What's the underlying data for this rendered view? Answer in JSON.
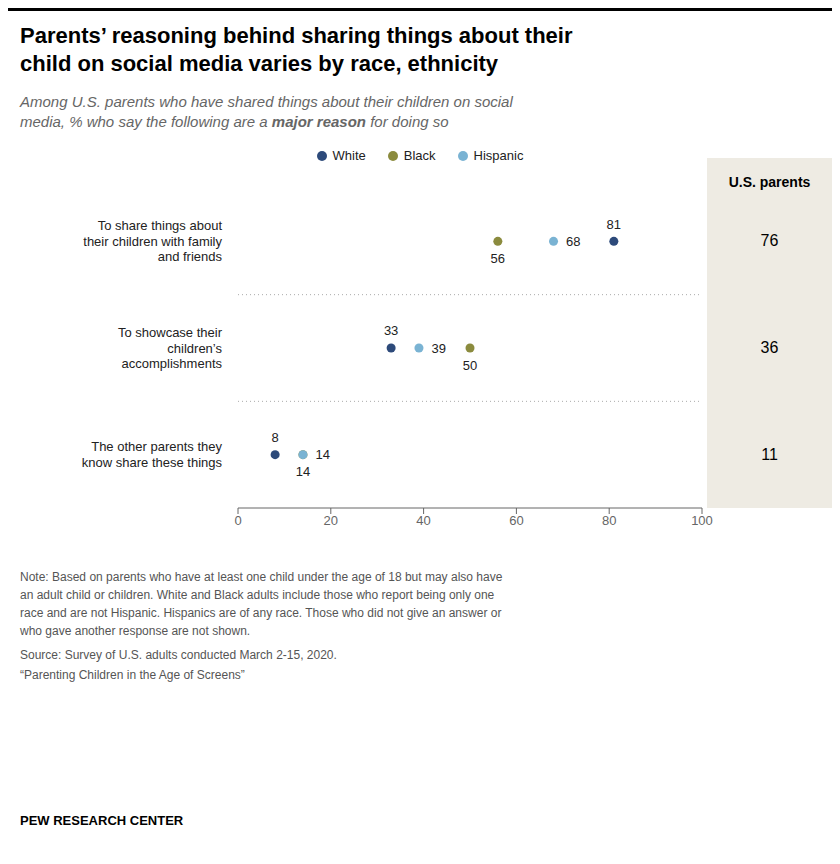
{
  "chart_data": {
    "type": "scatter",
    "title": "Parents’ reasoning behind sharing things about their\nchild on social media varies by race, ethnicity",
    "subtitle": "Among U.S. parents who have shared things about their children on social\nmedia, % who say the following are a major reason for doing so",
    "subtitle_emphasis": "major reason",
    "categories": [
      "To share things about\ntheir children with family\nand friends",
      "To showcase their\nchildren’s\naccomplishments",
      "The other parents they\nknow share these things"
    ],
    "series": [
      {
        "name": "White",
        "color": "#2d4a7a",
        "values": [
          81,
          33,
          8
        ]
      },
      {
        "name": "Black",
        "color": "#8b8b3e",
        "values": [
          56,
          50,
          14
        ]
      },
      {
        "name": "Hispanic",
        "color": "#7ab3d3",
        "values": [
          68,
          39,
          14
        ]
      }
    ],
    "column": {
      "title": "U.S. parents",
      "values": [
        76,
        36,
        11
      ]
    },
    "xlim": [
      0,
      100
    ],
    "xticks": [
      0,
      20,
      40,
      60,
      80,
      100
    ],
    "data_labels": true,
    "legend": "top",
    "grid": false,
    "note": "Note: Based on parents who have at least one child under the age of 18 but may also have\nan adult child or children. White and Black adults include those who report being only one\nrace and are not Hispanic. Hispanics are of any race. Those who did not give an answer or\nwho gave another response are not shown.",
    "source": "Source: Survey of U.S. adults conducted March 2-15, 2020.",
    "publication": "“Parenting Children in the Age of Screens”",
    "credit": "PEW RESEARCH CENTER"
  }
}
